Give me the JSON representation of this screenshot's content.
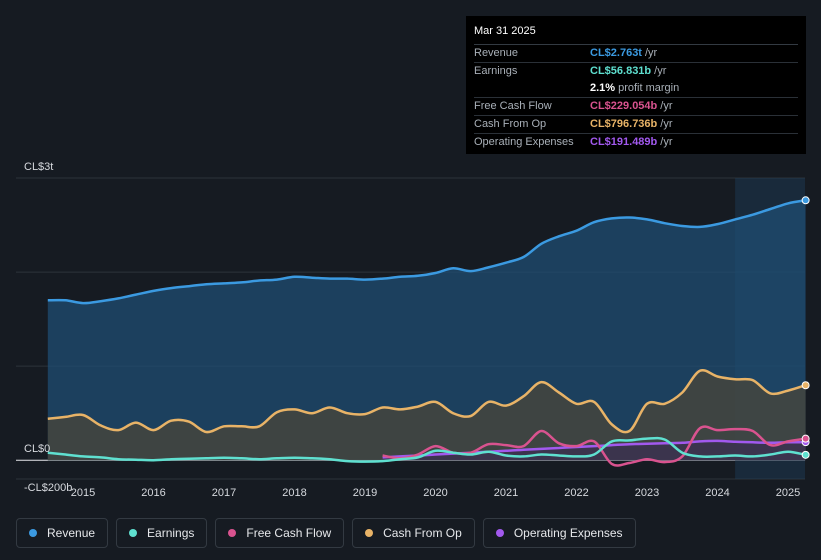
{
  "tooltip": {
    "date": "Mar 31 2025",
    "rows": [
      {
        "label": "Revenue",
        "value": "CL$2.763t",
        "unit": "/yr",
        "color": "#3b9ae1"
      },
      {
        "label": "Earnings",
        "value": "CL$56.831b",
        "unit": "/yr",
        "color": "#5fe0d0"
      },
      {
        "label": "",
        "value": "2.1%",
        "unit": "profit margin",
        "color": "#ffffff"
      },
      {
        "label": "Free Cash Flow",
        "value": "CL$229.054b",
        "unit": "/yr",
        "color": "#d9538f"
      },
      {
        "label": "Cash From Op",
        "value": "CL$796.736b",
        "unit": "/yr",
        "color": "#e8b367"
      },
      {
        "label": "Operating Expenses",
        "value": "CL$191.489b",
        "unit": "/yr",
        "color": "#a259ee"
      }
    ]
  },
  "legend": [
    {
      "label": "Revenue",
      "color": "#3b9ae1"
    },
    {
      "label": "Earnings",
      "color": "#5fe0d0"
    },
    {
      "label": "Free Cash Flow",
      "color": "#d9538f"
    },
    {
      "label": "Cash From Op",
      "color": "#e8b367"
    },
    {
      "label": "Operating Expenses",
      "color": "#a259ee"
    }
  ],
  "chart_data": {
    "type": "area",
    "title": "",
    "xlabel": "",
    "ylabel": "",
    "unit": "CL$ billions",
    "ylim": [
      -200,
      3000
    ],
    "y_tick_labels": [
      {
        "value": 3000,
        "label": "CL$3t"
      },
      {
        "value": 0,
        "label": "CL$0"
      },
      {
        "value": -200,
        "label": "-CL$200b"
      }
    ],
    "xlim": [
      2014.0,
      2025.3
    ],
    "x_ticks": [
      2015,
      2016,
      2017,
      2018,
      2019,
      2020,
      2021,
      2022,
      2023,
      2024,
      2025
    ],
    "x_tick_labels": [
      "2015",
      "2016",
      "2017",
      "2018",
      "2019",
      "2020",
      "2021",
      "2022",
      "2023",
      "2024",
      "2025"
    ],
    "highlight_from": 2024.25,
    "series": [
      {
        "name": "Revenue",
        "color": "#3b9ae1",
        "area": true,
        "x": [
          2014.5,
          2014.75,
          2015.0,
          2015.25,
          2015.5,
          2015.75,
          2016.0,
          2016.25,
          2016.5,
          2016.75,
          2017.0,
          2017.25,
          2017.5,
          2017.75,
          2018.0,
          2018.25,
          2018.5,
          2018.75,
          2019.0,
          2019.25,
          2019.5,
          2019.75,
          2020.0,
          2020.25,
          2020.5,
          2020.75,
          2021.0,
          2021.25,
          2021.5,
          2021.75,
          2022.0,
          2022.25,
          2022.5,
          2022.75,
          2023.0,
          2023.25,
          2023.5,
          2023.75,
          2024.0,
          2024.25,
          2024.5,
          2024.75,
          2025.0,
          2025.25
        ],
        "values": [
          1700,
          1700,
          1670,
          1690,
          1720,
          1760,
          1800,
          1830,
          1850,
          1870,
          1880,
          1890,
          1910,
          1920,
          1950,
          1940,
          1930,
          1930,
          1920,
          1930,
          1950,
          1960,
          1990,
          2040,
          2010,
          2050,
          2100,
          2160,
          2300,
          2380,
          2440,
          2530,
          2570,
          2580,
          2560,
          2520,
          2490,
          2480,
          2510,
          2560,
          2610,
          2670,
          2730,
          2763
        ]
      },
      {
        "name": "Cash From Op",
        "color": "#e8b367",
        "area": true,
        "x": [
          2014.5,
          2014.75,
          2015.0,
          2015.25,
          2015.5,
          2015.75,
          2016.0,
          2016.25,
          2016.5,
          2016.75,
          2017.0,
          2017.25,
          2017.5,
          2017.75,
          2018.0,
          2018.25,
          2018.5,
          2018.75,
          2019.0,
          2019.25,
          2019.5,
          2019.75,
          2020.0,
          2020.25,
          2020.5,
          2020.75,
          2021.0,
          2021.25,
          2021.5,
          2021.75,
          2022.0,
          2022.25,
          2022.5,
          2022.75,
          2023.0,
          2023.25,
          2023.5,
          2023.75,
          2024.0,
          2024.25,
          2024.5,
          2024.75,
          2025.0,
          2025.25
        ],
        "values": [
          440,
          460,
          480,
          370,
          320,
          400,
          320,
          420,
          410,
          300,
          360,
          360,
          360,
          510,
          540,
          500,
          560,
          500,
          490,
          560,
          540,
          570,
          620,
          500,
          470,
          620,
          580,
          680,
          830,
          720,
          600,
          620,
          380,
          310,
          600,
          600,
          720,
          950,
          890,
          860,
          850,
          710,
          740,
          796.7
        ]
      },
      {
        "name": "Operating Expenses",
        "color": "#a259ee",
        "area": true,
        "x": [
          2019.25,
          2019.5,
          2019.75,
          2020.0,
          2020.25,
          2020.5,
          2020.75,
          2021.0,
          2021.25,
          2021.5,
          2021.75,
          2022.0,
          2022.25,
          2022.5,
          2022.75,
          2023.0,
          2023.25,
          2023.5,
          2023.75,
          2024.0,
          2024.25,
          2024.5,
          2024.75,
          2025.0,
          2025.25
        ],
        "values": [
          30,
          40,
          50,
          60,
          70,
          80,
          90,
          100,
          110,
          120,
          130,
          140,
          150,
          160,
          170,
          175,
          180,
          185,
          200,
          205,
          195,
          190,
          185,
          190,
          191.5
        ]
      },
      {
        "name": "Free Cash Flow",
        "color": "#d9538f",
        "area": false,
        "x": [
          2019.25,
          2019.5,
          2019.75,
          2020.0,
          2020.25,
          2020.5,
          2020.75,
          2021.0,
          2021.25,
          2021.5,
          2021.75,
          2022.0,
          2022.25,
          2022.5,
          2022.75,
          2023.0,
          2023.25,
          2023.5,
          2023.75,
          2024.0,
          2024.25,
          2024.5,
          2024.75,
          2025.0,
          2025.25
        ],
        "values": [
          50,
          20,
          60,
          150,
          80,
          80,
          170,
          160,
          150,
          310,
          180,
          150,
          200,
          -40,
          -30,
          10,
          -20,
          40,
          340,
          320,
          330,
          310,
          160,
          200,
          229
        ]
      },
      {
        "name": "Earnings",
        "color": "#5fe0d0",
        "area": false,
        "x": [
          2014.5,
          2014.75,
          2015.0,
          2015.25,
          2015.5,
          2015.75,
          2016.0,
          2016.25,
          2016.5,
          2016.75,
          2017.0,
          2017.25,
          2017.5,
          2017.75,
          2018.0,
          2018.25,
          2018.5,
          2018.75,
          2019.0,
          2019.25,
          2019.5,
          2019.75,
          2020.0,
          2020.25,
          2020.5,
          2020.75,
          2021.0,
          2021.25,
          2021.5,
          2021.75,
          2022.0,
          2022.25,
          2022.5,
          2022.75,
          2023.0,
          2023.25,
          2023.5,
          2023.75,
          2024.0,
          2024.25,
          2024.5,
          2024.75,
          2025.0,
          2025.25
        ],
        "values": [
          80,
          60,
          40,
          30,
          10,
          5,
          0,
          10,
          15,
          20,
          25,
          20,
          10,
          20,
          25,
          20,
          10,
          -10,
          -15,
          -10,
          10,
          30,
          100,
          80,
          60,
          90,
          50,
          40,
          60,
          50,
          40,
          60,
          200,
          210,
          230,
          220,
          80,
          40,
          40,
          50,
          40,
          60,
          90,
          56.8
        ]
      }
    ]
  }
}
